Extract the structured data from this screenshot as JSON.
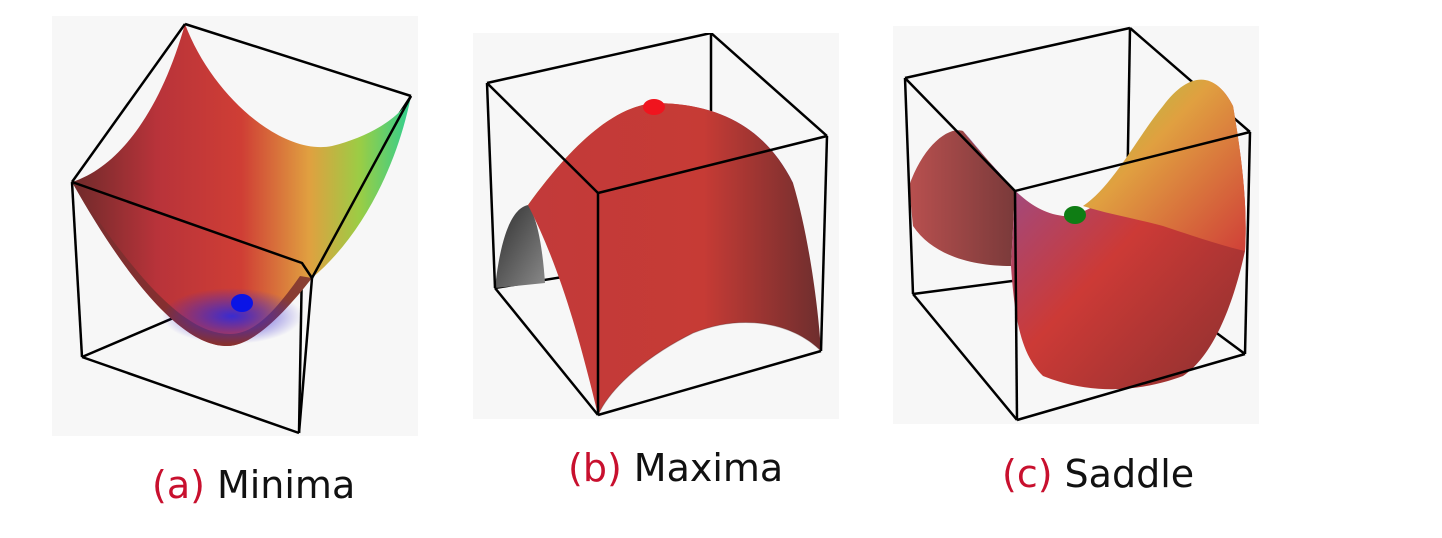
{
  "panels": [
    {
      "tag": "(a)",
      "label": "Minima",
      "point_color": "#0a14e6"
    },
    {
      "tag": "(b)",
      "label": "Maxima",
      "point_color": "#f0141e"
    },
    {
      "tag": "(c)",
      "label": "Saddle",
      "point_color": "#0f7d14"
    }
  ],
  "colors": {
    "caption_tag": "#c8102e",
    "caption_text": "#111111",
    "panel_background": "#f7f7f7",
    "box_edges": "#000000"
  }
}
